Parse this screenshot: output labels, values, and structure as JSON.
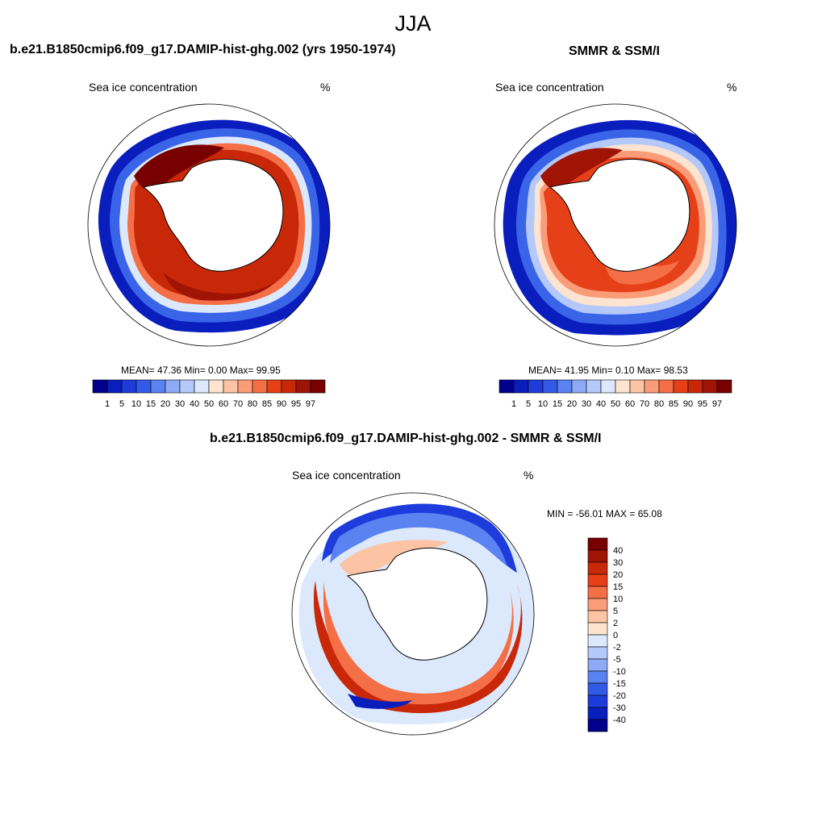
{
  "page": {
    "title": "JJA"
  },
  "panel_model": {
    "title": "b.e21.B1850cmip6.f09_g17.DAMIP-hist-ghg.002 (yrs 1950-1974)",
    "left_label": "Sea ice concentration",
    "right_label": "%",
    "stats": "MEAN=  47.36  Min=   0.00  Max=  99.95"
  },
  "panel_obs": {
    "title": "SMMR & SSM/I",
    "left_label": "Sea ice concentration",
    "right_label": "%",
    "stats": "MEAN=  41.95  Min=   0.10  Max=  98.53"
  },
  "panel_diff": {
    "title": "b.e21.B1850cmip6.f09_g17.DAMIP-hist-ghg.002 - SMMR & SSM/I",
    "left_label": "Sea ice concentration",
    "right_label": "%",
    "stats": "MIN = -56.01 MAX =  65.08"
  },
  "conc_colorbar": {
    "labels": [
      "1",
      "5",
      "10",
      "15",
      "20",
      "30",
      "40",
      "50",
      "60",
      "70",
      "80",
      "85",
      "90",
      "95",
      "97"
    ],
    "colors": [
      "#00008c",
      "#0a1ebe",
      "#1e3cdc",
      "#325ae6",
      "#5a82f0",
      "#8caaf5",
      "#b4c8fa",
      "#dce8fc",
      "#fde4d0",
      "#fcc4a4",
      "#fa9c78",
      "#f46e46",
      "#e64018",
      "#c82808",
      "#a01406",
      "#780000"
    ]
  },
  "diff_colorbar": {
    "labels": [
      "40",
      "30",
      "20",
      "15",
      "10",
      "5",
      "2",
      "0",
      "-2",
      "-5",
      "-10",
      "-15",
      "-20",
      "-30",
      "-40"
    ],
    "colors": [
      "#780000",
      "#a01406",
      "#c82808",
      "#e64018",
      "#f46e46",
      "#fa9c78",
      "#fcc4a4",
      "#fde4d0",
      "#dce8fc",
      "#b4c8fa",
      "#8caaf5",
      "#5a82f0",
      "#325ae6",
      "#1e3cdc",
      "#0a1ebe",
      "#00008c"
    ]
  }
}
